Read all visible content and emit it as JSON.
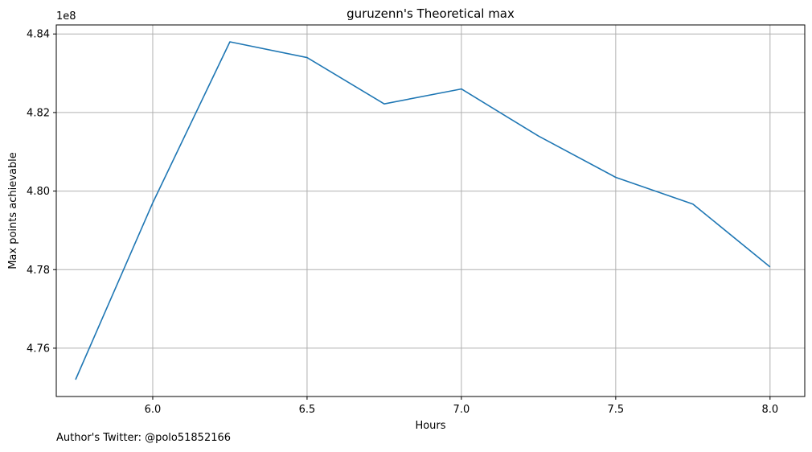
{
  "chart_data": {
    "type": "line",
    "title": "guruzenn's Theoretical max",
    "xlabel": "Hours",
    "ylabel": "Max points achievable",
    "y_offset_label": "1e8",
    "x": [
      5.75,
      6.0,
      6.25,
      6.5,
      6.75,
      7.0,
      7.25,
      7.5,
      7.75,
      8.0
    ],
    "series": [
      {
        "values": [
          475200000,
          479700000,
          483800000,
          483400000,
          482220000,
          482600000,
          481400000,
          480350000,
          479670000,
          478070000
        ],
        "color": "#1f77b4"
      }
    ],
    "xticks": [
      6.0,
      6.5,
      7.0,
      7.5,
      8.0
    ],
    "xtick_labels": [
      "6.0",
      "6.5",
      "7.0",
      "7.5",
      "8.0"
    ],
    "yticks": [
      476000000,
      478000000,
      480000000,
      482000000,
      484000000
    ],
    "ytick_labels": [
      "4.76",
      "4.78",
      "4.80",
      "4.82",
      "4.84"
    ],
    "xlim": [
      5.6875,
      8.1125
    ],
    "ylim": [
      474770000,
      484230000
    ],
    "grid": true,
    "grid_color": "#b0b0b0"
  },
  "footer": {
    "text": "Author's Twitter: @polo51852166"
  }
}
